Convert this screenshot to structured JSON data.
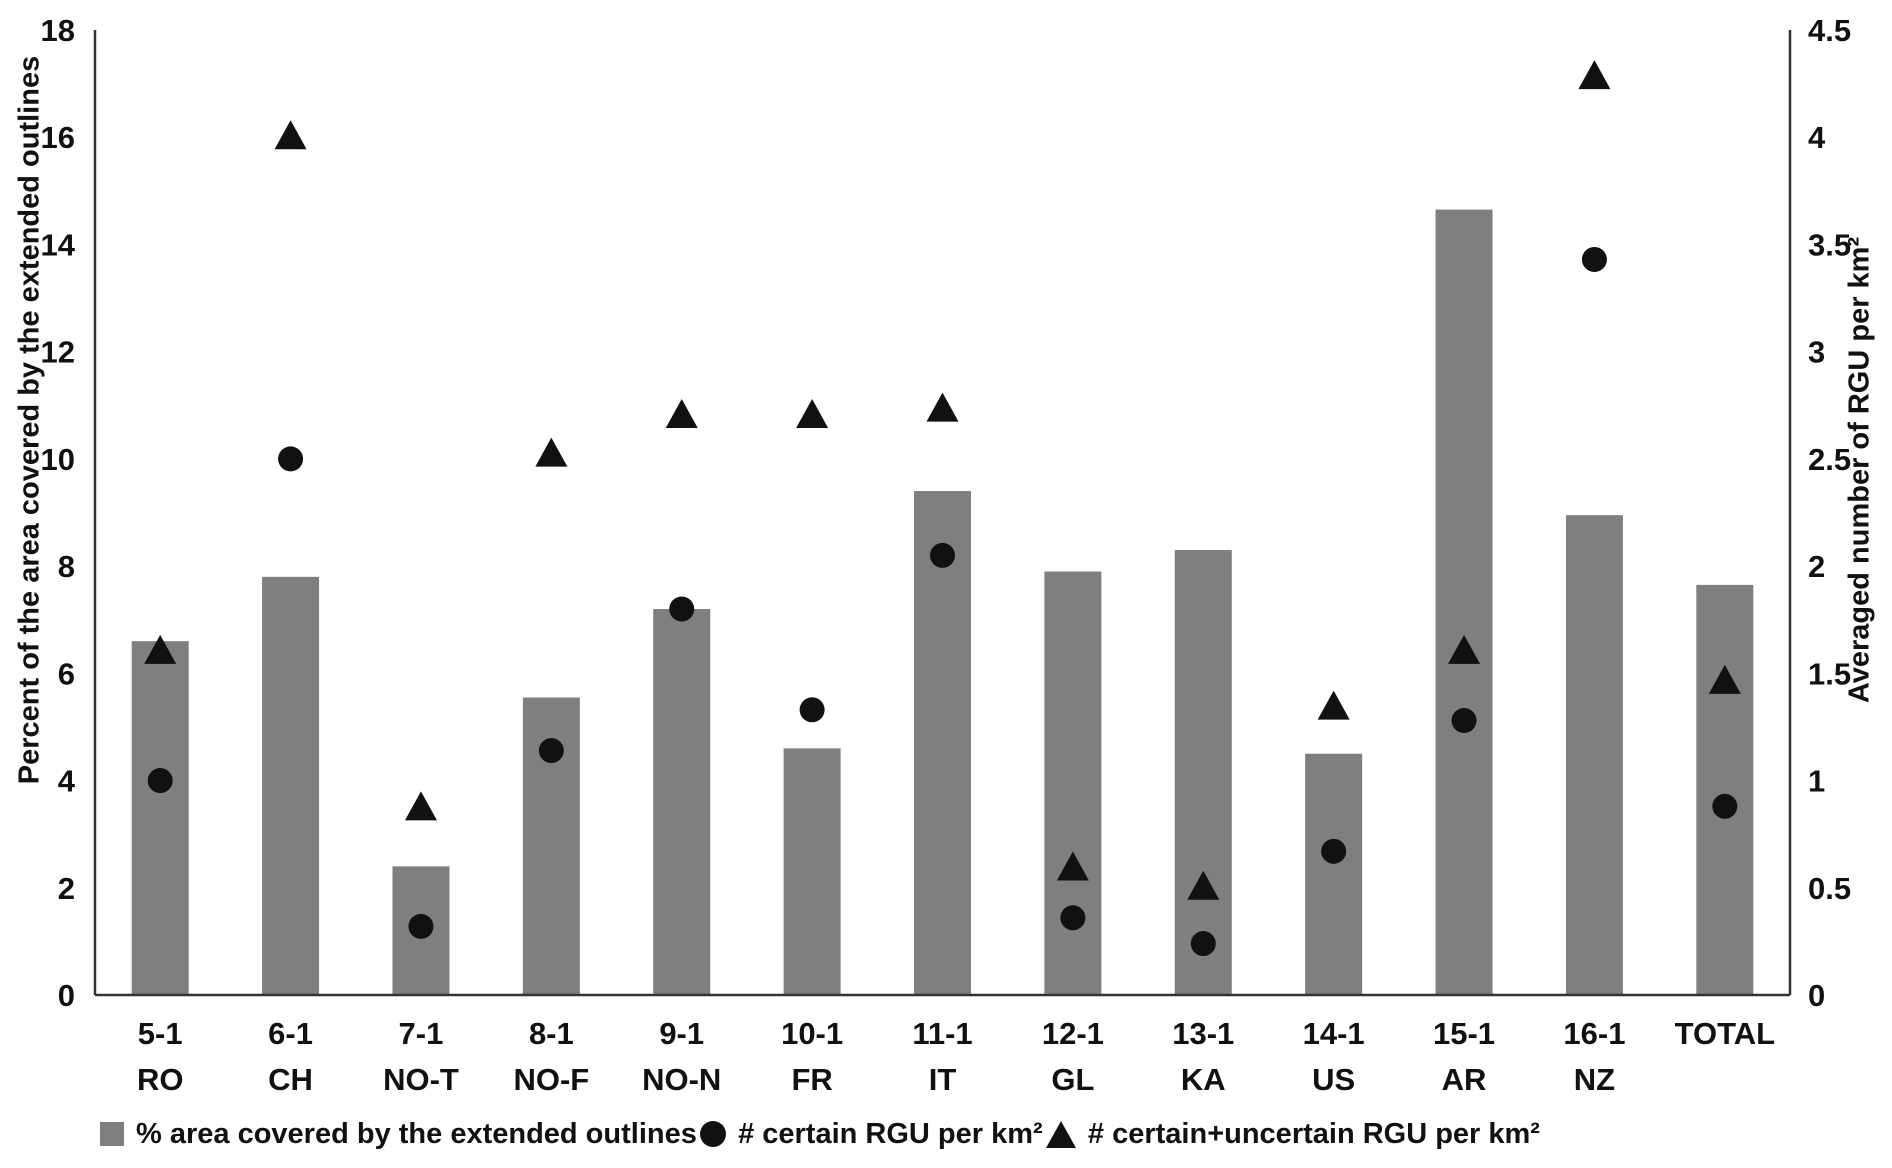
{
  "chart_data": {
    "type": "bar",
    "title": "",
    "categories": [
      {
        "id": "5-1",
        "region": "RO"
      },
      {
        "id": "6-1",
        "region": "CH"
      },
      {
        "id": "7-1",
        "region": "NO-T"
      },
      {
        "id": "8-1",
        "region": "NO-F"
      },
      {
        "id": "9-1",
        "region": "NO-N"
      },
      {
        "id": "10-1",
        "region": "FR"
      },
      {
        "id": "11-1",
        "region": "IT"
      },
      {
        "id": "12-1",
        "region": "GL"
      },
      {
        "id": "13-1",
        "region": "KA"
      },
      {
        "id": "14-1",
        "region": "US"
      },
      {
        "id": "15-1",
        "region": "AR"
      },
      {
        "id": "16-1",
        "region": "NZ"
      },
      {
        "id": "TOTAL",
        "region": ""
      }
    ],
    "series": [
      {
        "name": "% area covered by the extended outlines",
        "type": "bar",
        "axis": "left",
        "values": [
          6.6,
          7.8,
          2.4,
          5.55,
          7.2,
          4.6,
          9.4,
          7.9,
          8.3,
          4.5,
          14.65,
          8.95,
          7.65
        ]
      },
      {
        "name": "# certain RGU per km²",
        "type": "scatter-circle",
        "axis": "right",
        "values": [
          1.0,
          2.5,
          0.32,
          1.14,
          1.8,
          1.33,
          2.05,
          0.36,
          0.24,
          0.67,
          1.28,
          3.43,
          0.88
        ]
      },
      {
        "name": "# certain+uncertain RGU per km²",
        "type": "scatter-triangle",
        "axis": "right",
        "values": [
          1.6,
          4.0,
          0.87,
          2.52,
          2.7,
          2.7,
          2.73,
          0.59,
          0.5,
          1.34,
          1.6,
          4.28,
          1.46
        ]
      }
    ],
    "ylabel_left": "Percent of the area covered by the extended outlines",
    "ylabel_right": "Averaged number of RGU per km²",
    "yaxis_left": {
      "min": 0,
      "max": 18,
      "step": 2
    },
    "yaxis_right": {
      "min": 0,
      "max": 4.5,
      "step": 0.5
    },
    "grid": false,
    "legend_position": "bottom",
    "colors": {
      "bar": "#7f7f7f",
      "marker": "#111111",
      "axis": "#333333",
      "text": "#111111"
    }
  }
}
